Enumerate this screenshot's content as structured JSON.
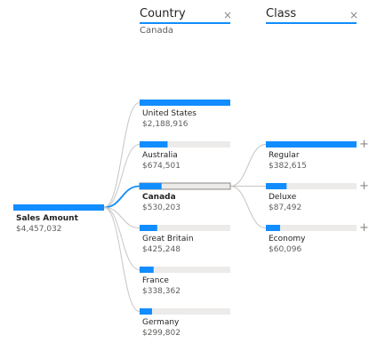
{
  "headers": {
    "country": {
      "title": "Country",
      "selected": "Canada",
      "close_glyph": "×"
    },
    "class": {
      "title": "Class",
      "close_glyph": "×"
    }
  },
  "expand_glyph": "+",
  "colors": {
    "accent": "#118DFF",
    "track": "#EDEBE9",
    "connector": "#C8C6C4",
    "text": "#252423",
    "subtext": "#605E5C"
  },
  "chart_data": {
    "type": "decomposition-tree",
    "root": {
      "label": "Sales Amount",
      "value": 4457032,
      "display": "$4,457,032"
    },
    "levels": [
      {
        "field": "Country",
        "selected": "Canada",
        "nodes": [
          {
            "label": "United States",
            "value": 2188916,
            "display": "$2,188,916"
          },
          {
            "label": "Australia",
            "value": 674501,
            "display": "$674,501"
          },
          {
            "label": "Canada",
            "value": 530203,
            "display": "$530,203",
            "selected": true
          },
          {
            "label": "Great Britain",
            "value": 425248,
            "display": "$425,248"
          },
          {
            "label": "France",
            "value": 338362,
            "display": "$338,362"
          },
          {
            "label": "Germany",
            "value": 299802,
            "display": "$299,802"
          }
        ]
      },
      {
        "field": "Class",
        "parent": "Canada",
        "nodes": [
          {
            "label": "Regular",
            "value": 382615,
            "display": "$382,615"
          },
          {
            "label": "Deluxe",
            "value": 87492,
            "display": "$87,492"
          },
          {
            "label": "Economy",
            "value": 60096,
            "display": "$60,096"
          }
        ]
      }
    ]
  }
}
